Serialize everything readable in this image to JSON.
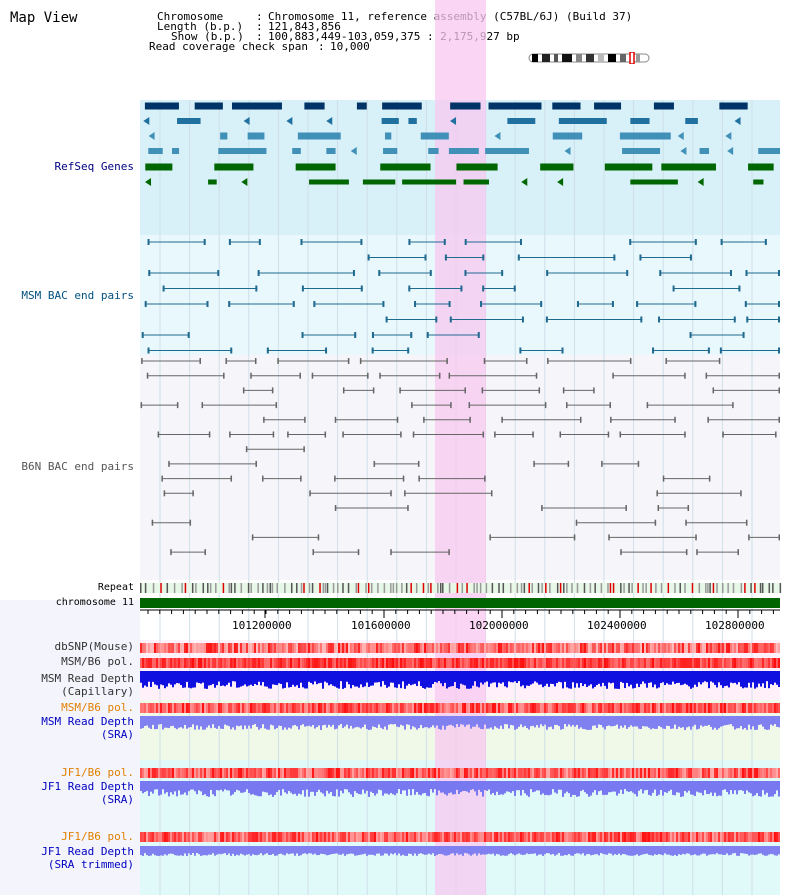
{
  "page": {
    "title": "Map View"
  },
  "header": {
    "chromosome_key": "Chromosome",
    "chromosome_value": "Chromosome 11, reference assembly (C57BL/6J) (Build 37)",
    "length_key": "Length (b.p.)",
    "length_value": "121,843,856",
    "show_key": "Show (b.p.)",
    "show_value": "100,883,449-103,059,375 : 2,175,927 bp",
    "coverage_key": "Read coverage check span",
    "coverage_value": "10,000"
  },
  "tracks": {
    "refseq": "RefSeq Genes",
    "msm_bac": "MSM BAC end pairs",
    "b6n_bac": "B6N BAC end pairs",
    "repeat": "Repeat",
    "chromosome": "chromosome 11",
    "dbsnp": "dbSNP(Mouse)",
    "msm_b6_pol": "MSM/B6 pol.",
    "msm_depth_cap_1": "MSM Read Depth",
    "msm_depth_cap_2": "(Capillary)",
    "msm_b6_pol_sra": "MSM/B6 pol.",
    "msm_depth_sra_1": "MSM Read Depth",
    "msm_depth_sra_2": "(SRA)",
    "jf1_b6_pol": "JF1/B6 pol.",
    "jf1_depth_sra_1": "JF1 Read Depth",
    "jf1_depth_sra_2": "(SRA)",
    "jf1_b6_pol_2": "JF1/B6 pol.",
    "jf1_depth_trim_1": "JF1 Read Depth",
    "jf1_depth_trim_2": "(SRA trimmed)"
  },
  "axis": {
    "ticks": [
      "101200000",
      "101600000",
      "102000000",
      "102400000",
      "102800000"
    ]
  },
  "colors": {
    "refseq_label": "#000080",
    "msm_bac_label": "#005080",
    "b6n_label": "#555555",
    "msm_sra_label": "#e08000",
    "msm_sra_depth_label": "#0000c0",
    "jf1_label": "#e08000",
    "highlight": "#f8d0f0"
  }
}
